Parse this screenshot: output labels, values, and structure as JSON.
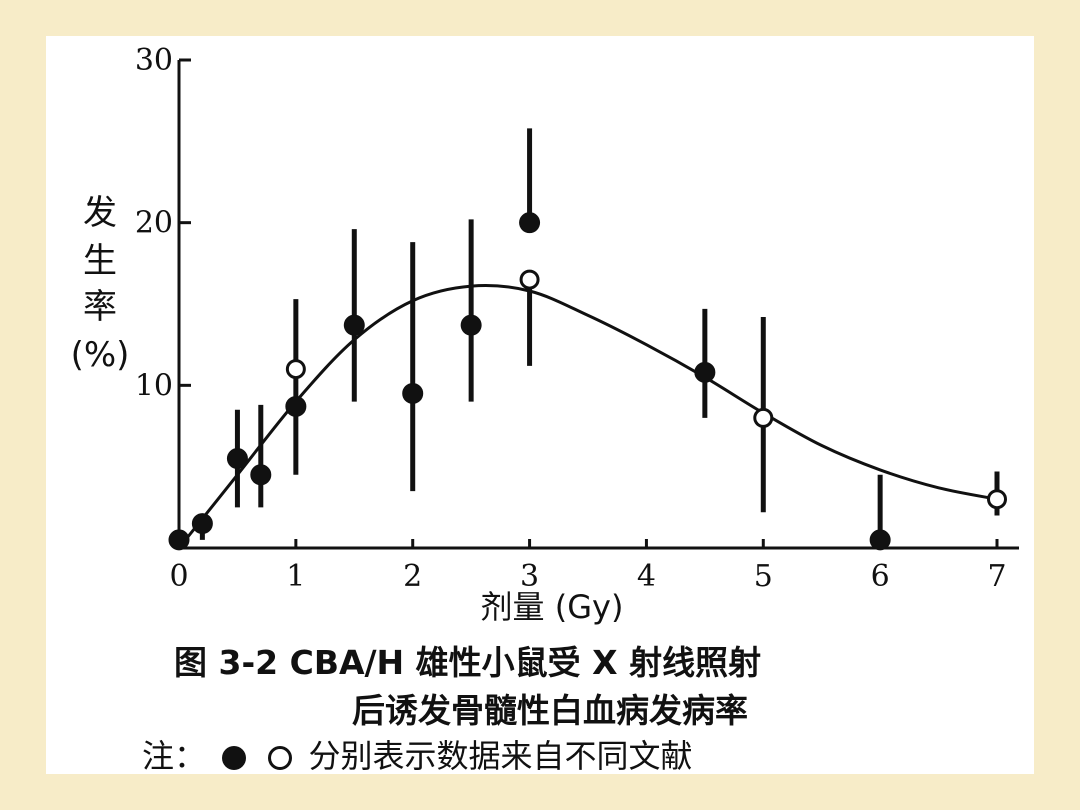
{
  "chart_data": {
    "type": "scatter",
    "ylabel_chars": [
      "发",
      "生",
      "率",
      "(%)"
    ],
    "xlabel": "剂量 (Gy)",
    "xlim": [
      0,
      7
    ],
    "ylim": [
      0,
      30
    ],
    "x_ticks": [
      0,
      1,
      2,
      3,
      4,
      5,
      6,
      7
    ],
    "y_ticks": [
      10,
      20,
      30
    ],
    "grid": false,
    "series": [
      {
        "marker": "filled",
        "points": [
          {
            "x": 0,
            "y": 0.5,
            "err_low": 0.5,
            "err_high": 0.5
          },
          {
            "x": 0.2,
            "y": 1.5,
            "err_low": 0.5,
            "err_high": 1.0
          },
          {
            "x": 0.5,
            "y": 5.5,
            "err_low": 2.5,
            "err_high": 8.5
          },
          {
            "x": 0.7,
            "y": 4.5,
            "err_low": 2.5,
            "err_high": 8.8
          },
          {
            "x": 1.0,
            "y": 8.7,
            "err_low": 4.5,
            "err_high": 15.3
          },
          {
            "x": 1.5,
            "y": 13.7,
            "err_low": 9.0,
            "err_high": 19.6
          },
          {
            "x": 2.0,
            "y": 9.5,
            "err_low": 3.5,
            "err_high": 18.8
          },
          {
            "x": 2.5,
            "y": 13.7,
            "err_low": 9.0,
            "err_high": 20.2
          },
          {
            "x": 3.0,
            "y": 20.0,
            "err_low": 20.0,
            "err_high": 25.8
          },
          {
            "x": 4.5,
            "y": 10.8,
            "err_low": 8.0,
            "err_high": 14.7
          },
          {
            "x": 6.0,
            "y": 0.5,
            "err_low": 0.5,
            "err_high": 4.5
          }
        ]
      },
      {
        "marker": "open",
        "points": [
          {
            "x": 1.0,
            "y": 11.0,
            "err_low": 11.0,
            "err_high": 11.0
          },
          {
            "x": 3.0,
            "y": 16.5,
            "err_low": 11.2,
            "err_high": 16.5
          },
          {
            "x": 5.0,
            "y": 8.0,
            "err_low": 2.2,
            "err_high": 14.2
          },
          {
            "x": 7.0,
            "y": 3.0,
            "err_low": 2.0,
            "err_high": 4.7
          }
        ]
      }
    ],
    "fit_curve": {
      "x": [
        0,
        0.5,
        1.0,
        1.5,
        2.0,
        2.5,
        3.0,
        3.5,
        4.0,
        4.5,
        5.0,
        5.5,
        6.0,
        6.5,
        7.0
      ],
      "y": [
        0,
        4.5,
        9.0,
        12.8,
        15.2,
        16.1,
        15.8,
        14.3,
        12.5,
        10.5,
        8.3,
        6.3,
        4.8,
        3.7,
        3.0
      ]
    }
  },
  "caption": {
    "line1": "图 3-2   CBA/H 雄性小鼠受 X 射线照射",
    "line2": "后诱发骨髓性白血病发病率"
  },
  "note": {
    "prefix": "注：",
    "suffix": "分别表示数据来自不同文献"
  }
}
